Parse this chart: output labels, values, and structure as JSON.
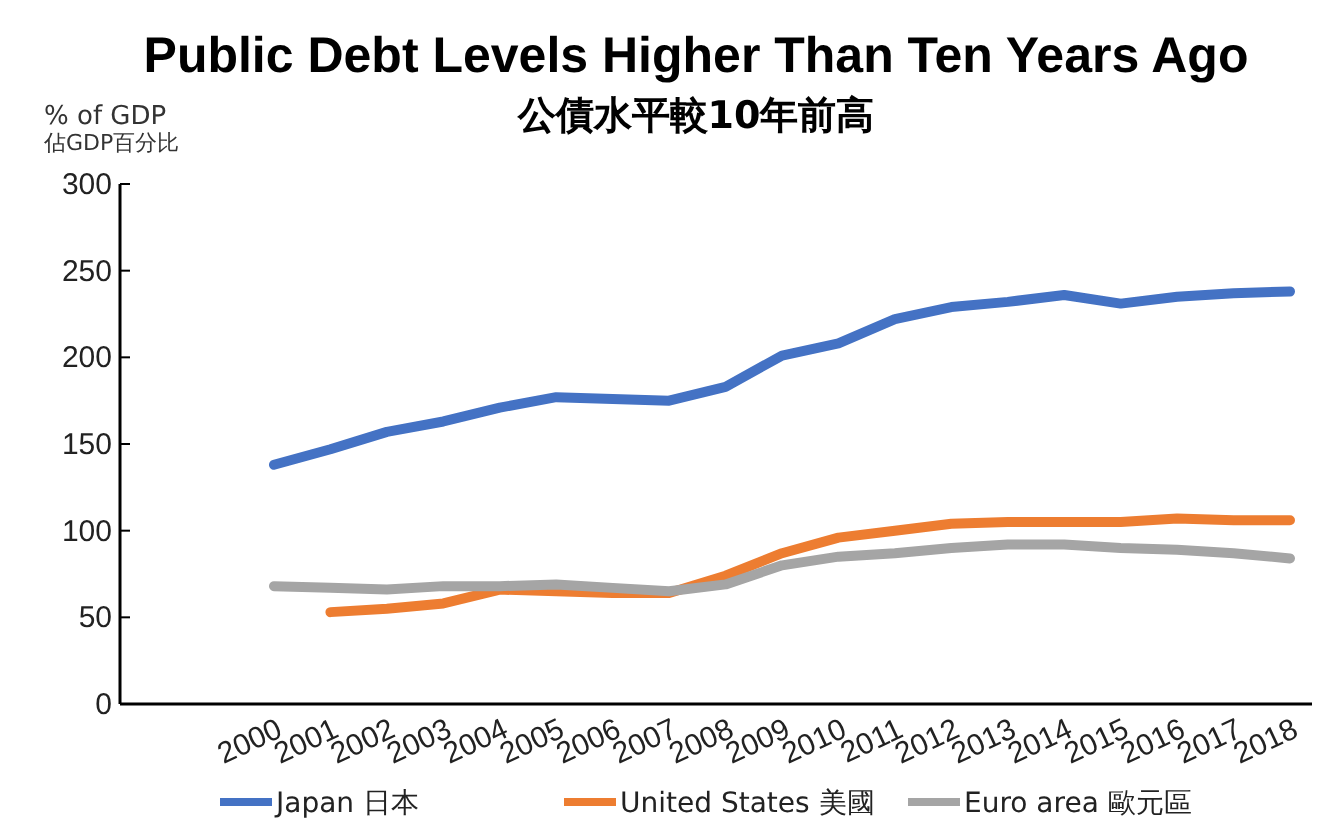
{
  "chart_data": {
    "type": "line",
    "title": "Public Debt Levels Higher Than Ten Years Ago",
    "subtitle": "公債水平較10年前高",
    "ylabel": "% of GDP\n佔GDP百分比",
    "categories": [
      "2000",
      "2001",
      "2002",
      "2003",
      "2004",
      "2005",
      "2006",
      "2007",
      "2008",
      "2009",
      "2010",
      "2011",
      "2012",
      "2013",
      "2014",
      "2015",
      "2016",
      "2017",
      "2018"
    ],
    "series": [
      {
        "name": "Japan 日本",
        "color": "#4472c4",
        "values": [
          138,
          147,
          157,
          163,
          171,
          177,
          176,
          175,
          183,
          201,
          208,
          222,
          229,
          232,
          236,
          231,
          235,
          237,
          238
        ]
      },
      {
        "name": "United States 美國",
        "color": "#ed7d31",
        "values": [
          null,
          53,
          55,
          58,
          66,
          65,
          64,
          64,
          74,
          87,
          96,
          100,
          104,
          105,
          105,
          105,
          107,
          106,
          106
        ]
      },
      {
        "name": "Euro area 歐元區",
        "color": "#a5a5a5",
        "values": [
          68,
          67,
          66,
          68,
          68,
          69,
          67,
          65,
          69,
          80,
          85,
          87,
          90,
          92,
          92,
          90,
          89,
          87,
          84
        ]
      }
    ],
    "ylim": [
      0,
      300
    ],
    "yticks": [
      0,
      50,
      100,
      150,
      200,
      250,
      300
    ],
    "grid": false,
    "legend": "bottom",
    "marker": "none",
    "line_style": "solid"
  }
}
